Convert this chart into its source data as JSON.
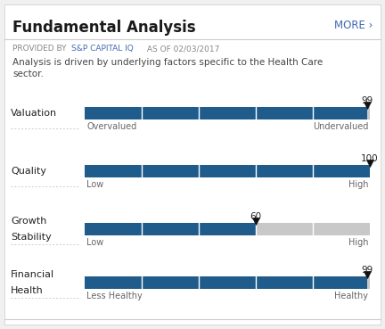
{
  "title": "Fundamental Analysis",
  "more_text": "MORE ›",
  "provider_prefix": "PROVIDED BY ",
  "provider_link": "S&P CAPITAL IQ",
  "provider_suffix": " AS OF 02/03/2017",
  "description_line1": "Analysis is driven by underlying factors specific to the Health Care",
  "description_line2": "sector.",
  "bg_color": "#f0f0f0",
  "panel_color": "#ffffff",
  "title_color": "#1a1a1a",
  "more_color": "#4169b0",
  "provider_prefix_color": "#888888",
  "provider_link_color": "#4169b0",
  "provider_suffix_color": "#888888",
  "desc_color": "#444444",
  "label_color": "#222222",
  "axis_label_color": "#666666",
  "value_color": "#222222",
  "bar_blue": "#1f5c8b",
  "bar_gray": "#c8c8c8",
  "divider_color": "#cccccc",
  "white": "#ffffff",
  "bars": [
    {
      "label1": "Valuation",
      "label2": "",
      "value": 99,
      "max": 100,
      "left_label": "Overvalued",
      "right_label": "Undervalued",
      "segments": 5
    },
    {
      "label1": "Quality",
      "label2": "",
      "value": 100,
      "max": 100,
      "left_label": "Low",
      "right_label": "High",
      "segments": 5
    },
    {
      "label1": "Growth",
      "label2": "Stability",
      "value": 60,
      "max": 100,
      "left_label": "Low",
      "right_label": "High",
      "segments": 5
    },
    {
      "label1": "Financial",
      "label2": "Health",
      "value": 99,
      "max": 100,
      "left_label": "Less Healthy",
      "right_label": "Healthy",
      "segments": 5
    }
  ]
}
